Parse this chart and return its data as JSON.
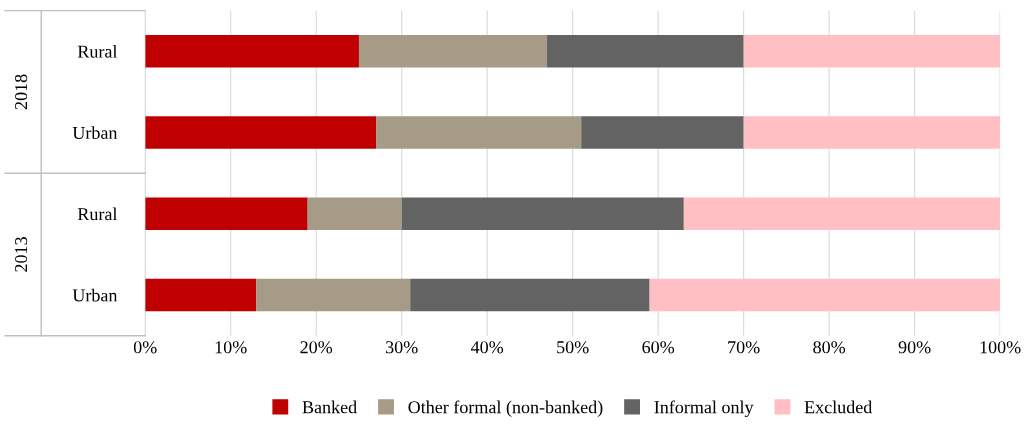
{
  "chart_data": {
    "type": "bar",
    "orientation": "horizontal",
    "stacked": true,
    "categories": [
      "Rural",
      "Urban",
      "Rural",
      "Urban"
    ],
    "series": [
      {
        "name": "Banked",
        "color": "#c00000",
        "values": [
          25,
          27,
          19,
          13
        ]
      },
      {
        "name": "Other formal (non-banked)",
        "color": "#a59b87",
        "values": [
          22,
          24,
          11,
          18
        ]
      },
      {
        "name": "Informal only",
        "color": "#636363",
        "values": [
          23,
          19,
          33,
          28
        ]
      },
      {
        "name": "Excluded",
        "color": "#ffbfc3",
        "values": [
          30,
          30,
          37,
          41
        ]
      }
    ],
    "annotations": [
      "2018",
      "2013"
    ],
    "xlim": [
      0,
      100
    ],
    "xticks": [
      {
        "value": 0,
        "label": "0%"
      },
      {
        "value": 10,
        "label": "10%"
      },
      {
        "value": 20,
        "label": "20%"
      },
      {
        "value": 30,
        "label": "30%"
      },
      {
        "value": 40,
        "label": "40%"
      },
      {
        "value": 50,
        "label": "50%"
      },
      {
        "value": 60,
        "label": "60%"
      },
      {
        "value": 70,
        "label": "70%"
      },
      {
        "value": 80,
        "label": "80%"
      },
      {
        "value": 90,
        "label": "90%"
      },
      {
        "value": 100,
        "label": "100%"
      }
    ],
    "grid": "x",
    "legend": "bottom"
  }
}
